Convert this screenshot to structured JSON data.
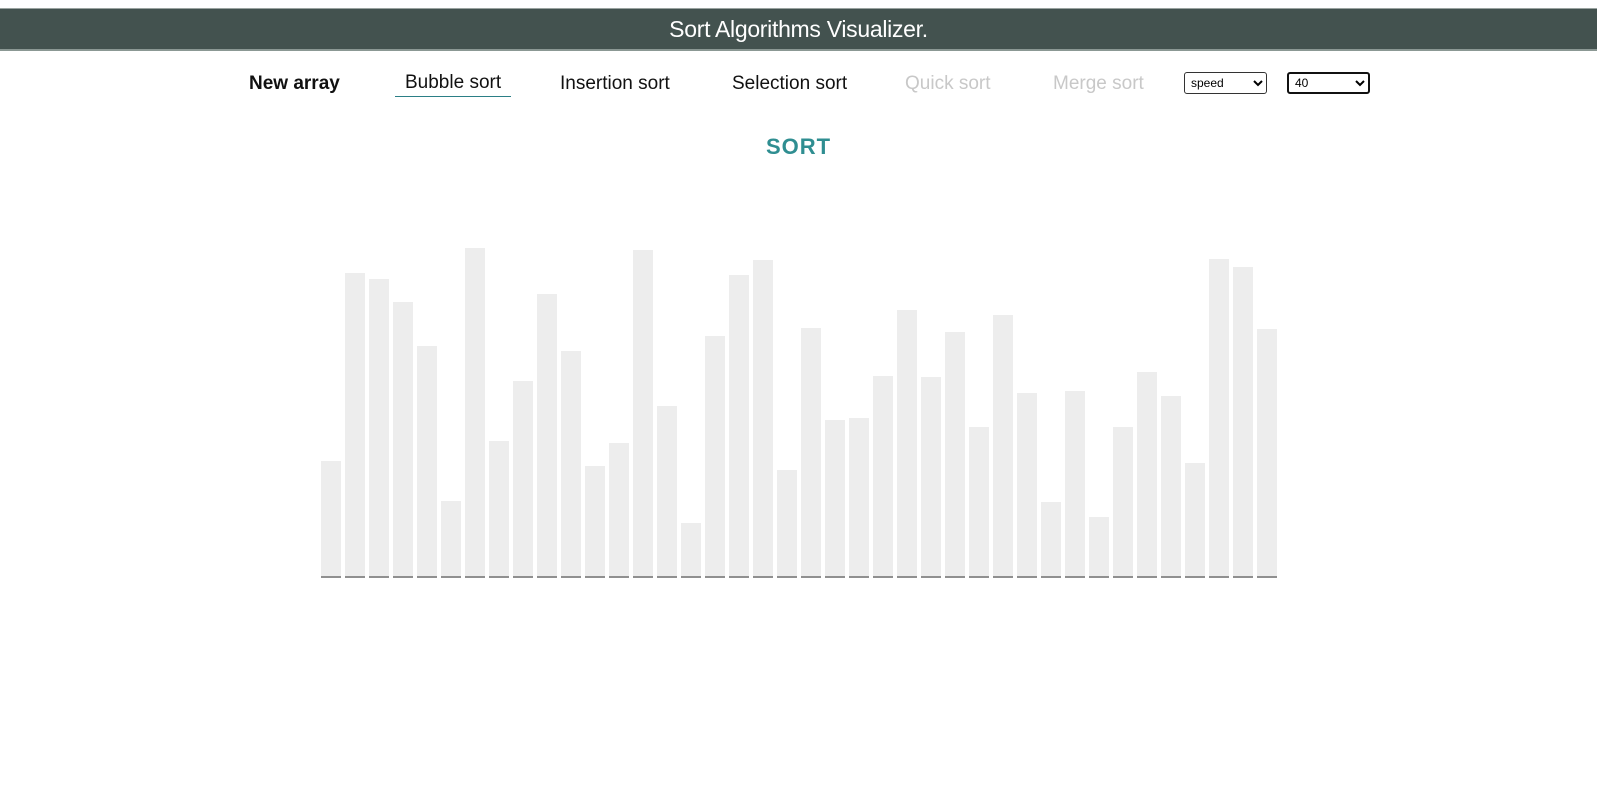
{
  "header": {
    "title": "Sort Algorithms Visualizer."
  },
  "nav": {
    "new_array": "New array",
    "bubble_sort": "Bubble sort",
    "insertion_sort": "Insertion sort",
    "selection_sort": "Selection sort",
    "quick_sort": "Quick sort",
    "merge_sort": "Merge sort"
  },
  "controls": {
    "speed": {
      "selected": "speed",
      "options": [
        "speed"
      ]
    },
    "size": {
      "selected": "40",
      "options": [
        "40"
      ]
    }
  },
  "action": {
    "sort_label": "SORT"
  },
  "colors": {
    "header_bg": "#43524f",
    "accent": "#2f8e91",
    "bar": "#ededed",
    "baseline": "#222222",
    "disabled_text": "#c8c8c8"
  },
  "chart_data": {
    "type": "bar",
    "values": [
      115,
      303,
      297,
      274,
      230,
      75,
      328,
      135,
      195,
      282,
      225,
      110,
      133,
      326,
      170,
      53,
      240,
      301,
      316,
      106,
      248,
      156,
      158,
      200,
      266,
      199,
      244,
      149,
      261,
      183,
      74,
      185,
      59,
      149,
      204,
      180,
      113,
      317,
      309,
      247
    ],
    "ylim": [
      0,
      330
    ],
    "grid": false
  }
}
